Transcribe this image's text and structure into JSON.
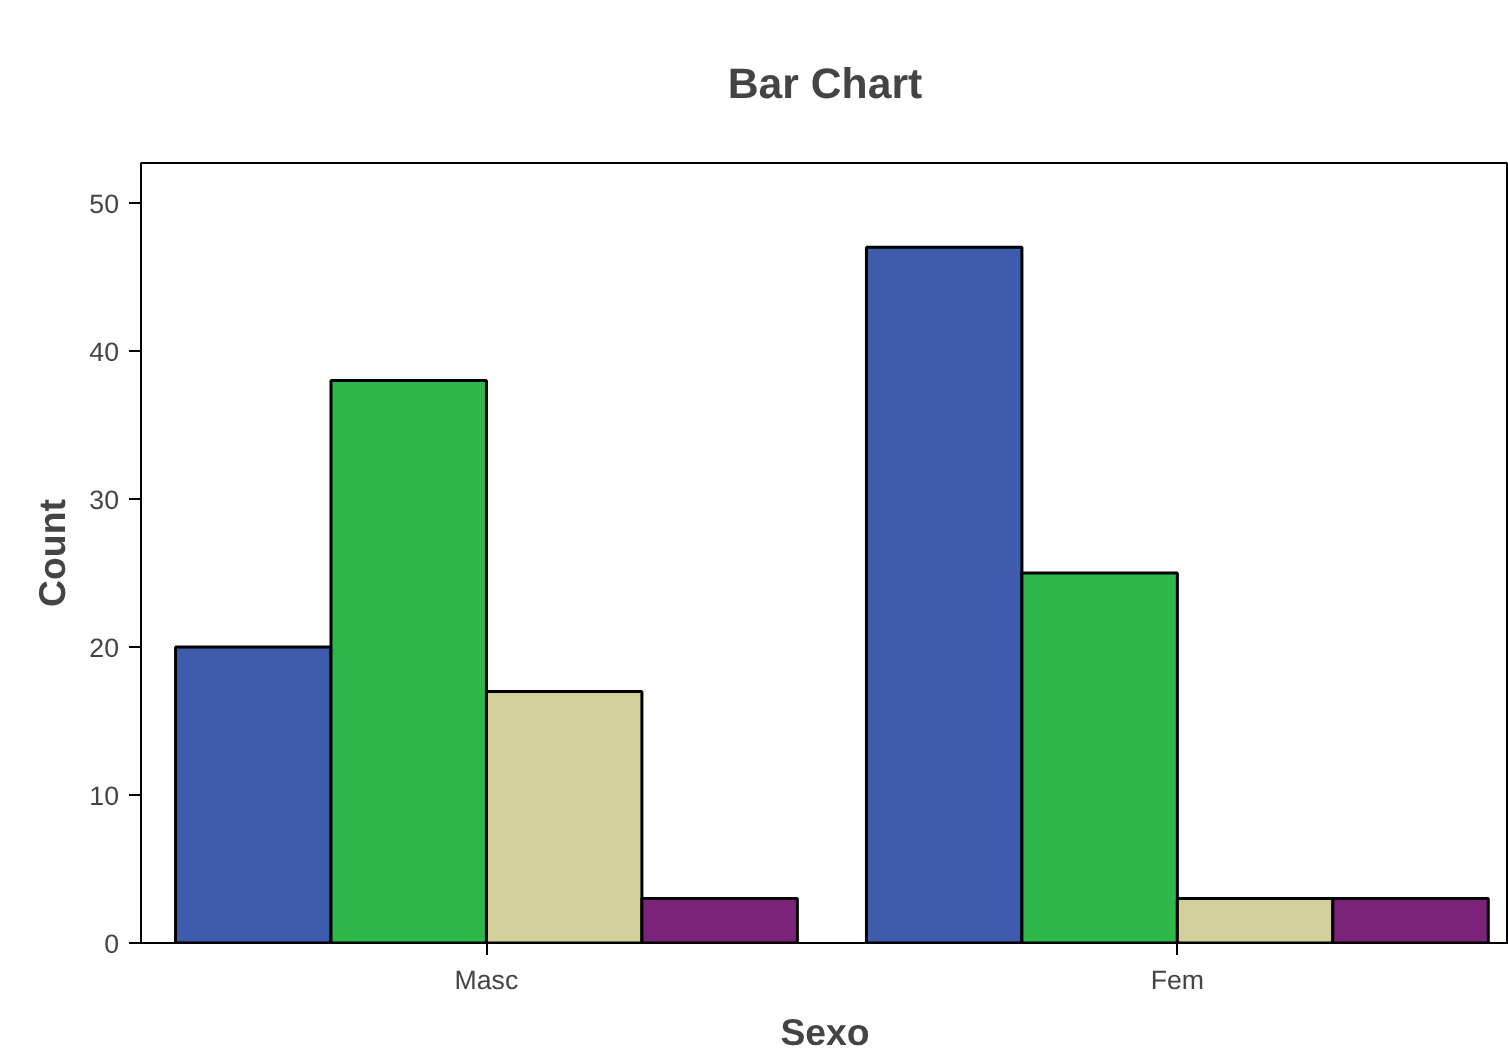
{
  "chart_data": {
    "type": "bar",
    "title": "Bar Chart",
    "xlabel": "Sexo",
    "ylabel": "Count",
    "categories": [
      "Masc",
      "Fem"
    ],
    "series": [
      {
        "color": "#3f5bab",
        "values": [
          20,
          47
        ]
      },
      {
        "color": "#2fb84a",
        "values": [
          38,
          25
        ]
      },
      {
        "color": "#d3cf9b",
        "values": [
          17,
          3
        ]
      },
      {
        "color": "#7b2378",
        "values": [
          3,
          3
        ]
      }
    ],
    "ylim": [
      0,
      52.7
    ],
    "yticks": [
      0,
      10,
      20,
      30,
      40,
      50
    ],
    "grid": false
  }
}
